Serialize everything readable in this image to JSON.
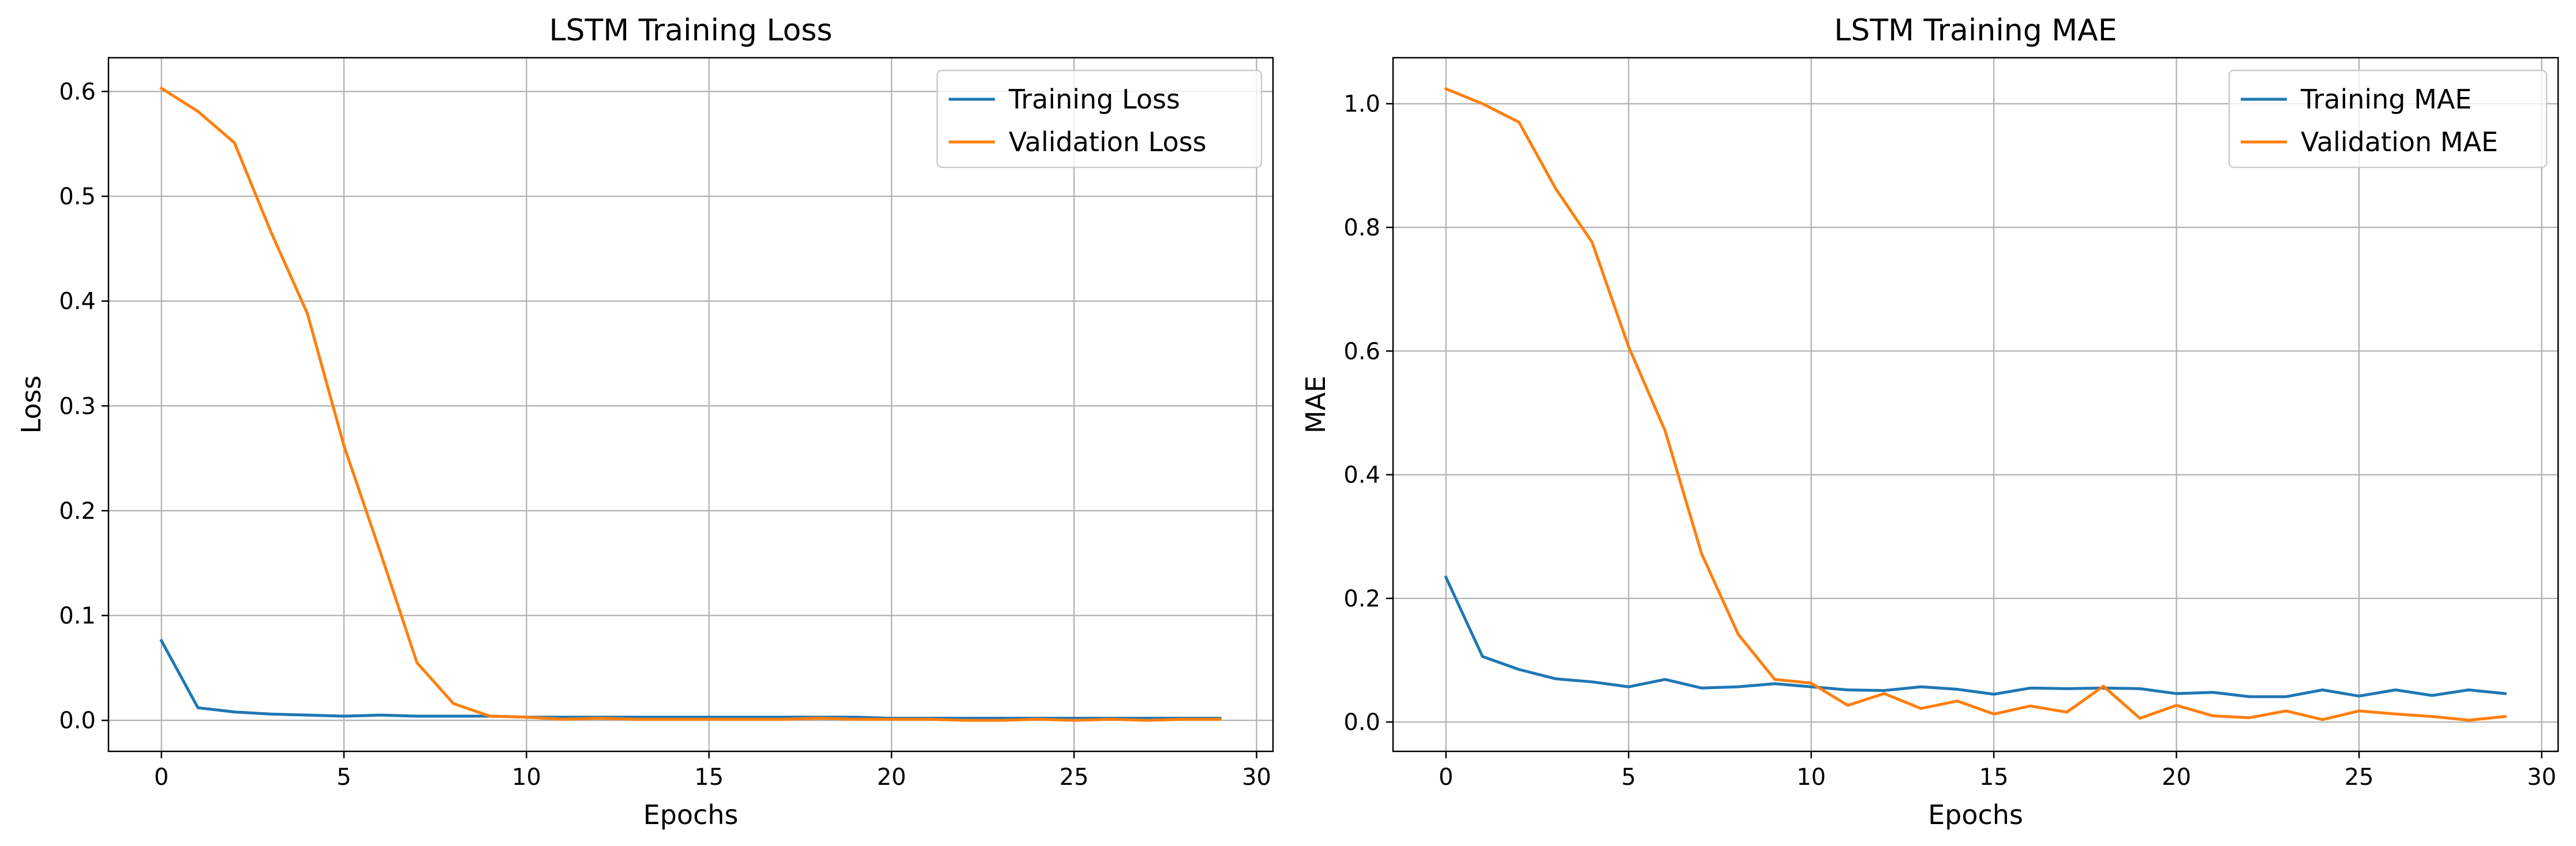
{
  "colors": {
    "series_1": "#1f77b4",
    "series_2": "#ff7f0e",
    "grid": "#b0b0b0",
    "axes": "#000000",
    "legend_edge": "#cccccc"
  },
  "chart_data": [
    {
      "type": "line",
      "title": "LSTM Training Loss",
      "xlabel": "Epochs",
      "ylabel": "Loss",
      "xlim": [
        -1.45,
        30.45
      ],
      "ylim": [
        -0.0296,
        0.6322
      ],
      "xticks": [
        0,
        5,
        10,
        15,
        20,
        25,
        30
      ],
      "xtick_labels": [
        "0",
        "5",
        "10",
        "15",
        "20",
        "25",
        "30"
      ],
      "yticks": [
        0.0,
        0.1,
        0.2,
        0.3,
        0.4,
        0.5,
        0.6
      ],
      "ytick_labels": [
        "0.0",
        "0.1",
        "0.2",
        "0.3",
        "0.4",
        "0.5",
        "0.6"
      ],
      "grid": true,
      "legend_position": "upper right",
      "x": [
        0,
        1,
        2,
        3,
        4,
        5,
        6,
        7,
        8,
        9,
        10,
        11,
        12,
        13,
        14,
        15,
        16,
        17,
        18,
        19,
        20,
        21,
        22,
        23,
        24,
        25,
        26,
        27,
        28,
        29
      ],
      "series": [
        {
          "name": "Training Loss",
          "color": "#1f77b4",
          "values": [
            0.076,
            0.012,
            0.008,
            0.006,
            0.005,
            0.004,
            0.005,
            0.004,
            0.004,
            0.004,
            0.003,
            0.003,
            0.003,
            0.003,
            0.003,
            0.003,
            0.003,
            0.003,
            0.003,
            0.003,
            0.002,
            0.002,
            0.002,
            0.002,
            0.002,
            0.002,
            0.002,
            0.002,
            0.002,
            0.002
          ]
        },
        {
          "name": "Validation Loss",
          "color": "#ff7f0e",
          "values": [
            0.603,
            0.581,
            0.551,
            0.466,
            0.388,
            0.262,
            0.16,
            0.055,
            0.016,
            0.004,
            0.003,
            0.001,
            0.002,
            0.001,
            0.001,
            0.001,
            0.001,
            0.001,
            0.002,
            0.001,
            0.001,
            0.001,
            0.0,
            0.0,
            0.001,
            0.0,
            0.001,
            0.0,
            0.001,
            0.001
          ]
        }
      ]
    },
    {
      "type": "line",
      "title": "LSTM Training MAE",
      "xlabel": "Epochs",
      "ylabel": "MAE",
      "xlim": [
        -1.45,
        30.45
      ],
      "ylim": [
        -0.0474,
        1.0744
      ],
      "xticks": [
        0,
        5,
        10,
        15,
        20,
        25,
        30
      ],
      "xtick_labels": [
        "0",
        "5",
        "10",
        "15",
        "20",
        "25",
        "30"
      ],
      "yticks": [
        0.0,
        0.2,
        0.4,
        0.6,
        0.8,
        1.0
      ],
      "ytick_labels": [
        "0.0",
        "0.2",
        "0.4",
        "0.6",
        "0.8",
        "1.0"
      ],
      "grid": true,
      "legend_position": "upper right",
      "x": [
        0,
        1,
        2,
        3,
        4,
        5,
        6,
        7,
        8,
        9,
        10,
        11,
        12,
        13,
        14,
        15,
        16,
        17,
        18,
        19,
        20,
        21,
        22,
        23,
        24,
        25,
        26,
        27,
        28,
        29
      ],
      "series": [
        {
          "name": "Training MAE",
          "color": "#1f77b4",
          "values": [
            0.234,
            0.106,
            0.085,
            0.07,
            0.065,
            0.057,
            0.069,
            0.055,
            0.057,
            0.062,
            0.057,
            0.052,
            0.051,
            0.057,
            0.053,
            0.045,
            0.055,
            0.054,
            0.055,
            0.054,
            0.046,
            0.048,
            0.041,
            0.041,
            0.052,
            0.042,
            0.052,
            0.043,
            0.052,
            0.046
          ]
        },
        {
          "name": "Validation MAE",
          "color": "#ff7f0e",
          "values": [
            1.024,
            1.0,
            0.97,
            0.863,
            0.776,
            0.607,
            0.471,
            0.272,
            0.142,
            0.069,
            0.063,
            0.027,
            0.046,
            0.022,
            0.034,
            0.013,
            0.026,
            0.016,
            0.058,
            0.006,
            0.027,
            0.01,
            0.007,
            0.018,
            0.004,
            0.018,
            0.013,
            0.009,
            0.003,
            0.009
          ]
        }
      ]
    }
  ]
}
